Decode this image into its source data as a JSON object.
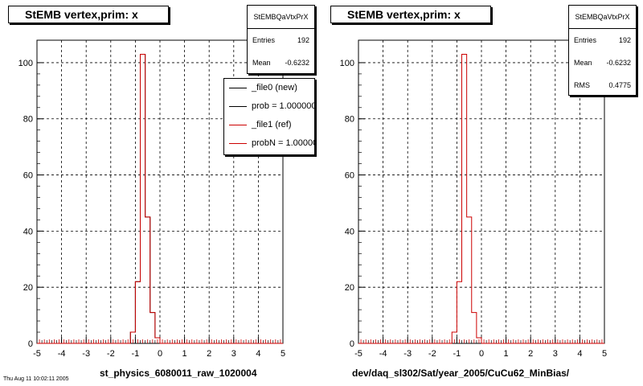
{
  "chart_data": [
    {
      "type": "histogram",
      "title": "StEMB  vertex,prim: x",
      "xlabel": "st_physics_6080011_raw_1020004",
      "xlim": [
        -5,
        5
      ],
      "ylim": [
        0,
        108
      ],
      "x_ticks": [
        "-5",
        "-4",
        "-3",
        "-2",
        "-1",
        "0",
        "1",
        "2",
        "3",
        "4",
        "5"
      ],
      "y_ticks": [
        "0",
        "20",
        "40",
        "60",
        "80",
        "100"
      ],
      "grid": true,
      "bin_width": 0.2,
      "bins_x_low": [
        -1.2,
        -1.0,
        -0.8,
        -0.6,
        -0.4,
        -0.2,
        0.0
      ],
      "series": [
        {
          "name": "_file0 (new)",
          "color": "#000000",
          "values": [
            4,
            22,
            103,
            45,
            11,
            2,
            0
          ]
        },
        {
          "name": "_file1 (ref)",
          "color": "#cc0000",
          "values": [
            4,
            22,
            103,
            45,
            11,
            2,
            0
          ]
        }
      ],
      "stats": {
        "name": "StEMBQaVtxPrX",
        "entries_label": "Entries",
        "entries": "192",
        "mean_label": "Mean",
        "mean": "-0.6232"
      },
      "legend": {
        "placement": "top-right",
        "entries": [
          {
            "label": "_file0 (new)",
            "color": "#000000"
          },
          {
            "label": "prob = 1.000000",
            "color": "#000000"
          },
          {
            "label": "_file1 (ref)",
            "color": "#cc0000"
          },
          {
            "label": "probN = 1.000000",
            "color": "#cc0000"
          }
        ]
      }
    },
    {
      "type": "histogram",
      "title": "StEMB  vertex,prim: x",
      "xlabel": "dev/daq_sl302/Sat/year_2005/CuCu62_MinBias/",
      "xlim": [
        -5,
        5
      ],
      "ylim": [
        0,
        108
      ],
      "x_ticks": [
        "-5",
        "-4",
        "-3",
        "-2",
        "-1",
        "0",
        "1",
        "2",
        "3",
        "4",
        "5"
      ],
      "y_ticks": [
        "0",
        "20",
        "40",
        "60",
        "80",
        "100"
      ],
      "grid": true,
      "bin_width": 0.2,
      "bins_x_low": [
        -1.2,
        -1.0,
        -0.8,
        -0.6,
        -0.4,
        -0.2,
        0.0
      ],
      "series": [
        {
          "name": "_file1 (ref)",
          "color": "#cc0000",
          "values": [
            4,
            22,
            103,
            45,
            11,
            2,
            0
          ]
        }
      ],
      "stats": {
        "name": "StEMBQaVtxPrX",
        "entries_label": "Entries",
        "entries": "192",
        "mean_label": "Mean",
        "mean": "-0.6232",
        "rms_label": "RMS",
        "rms": "0.4775"
      }
    }
  ],
  "status_text": "Thu Aug 11 10:02:11 2005"
}
